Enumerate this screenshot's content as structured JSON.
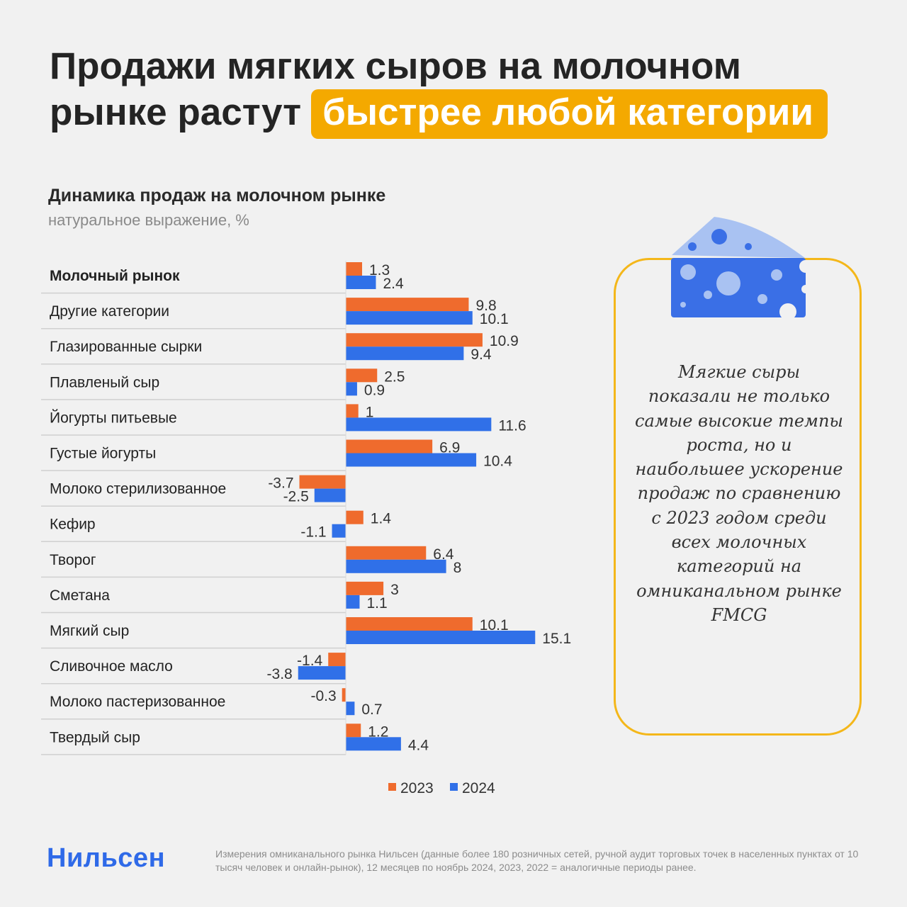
{
  "headline": {
    "line1": "Продажи мягких сыров на молочном",
    "line2_plain": "рынке растут",
    "line2_highlight": "быстрее любой категории"
  },
  "colors": {
    "accent_yellow": "#f4a900",
    "series_2023": "#ef6b2d",
    "series_2024": "#3070e8",
    "brand_blue": "#2f6ae8"
  },
  "callout": {
    "text": "Мягкие сыры показали не только самые высокие темпы роста, но и наибольшее ускорение продаж по сравнению с 2023 годом среди всех молочных категорий на омниканальном рынке FMCG",
    "icon": "cheese-icon"
  },
  "footer": {
    "brand": "Нильсен",
    "note": "Измерения омниканального рынка Нильсен (данные более 180 розничных сетей, ручной аудит торговых точек в населенных пунктах от 10 тысяч человек и онлайн-рынок), 12 месяцев по ноябрь 2024, 2023, 2022 = аналогичные периоды ранее."
  },
  "chart_data": {
    "type": "bar",
    "orientation": "horizontal",
    "title": "Динамика продаж на молочном рынке",
    "subtitle": "натуральное выражение, %",
    "categories": [
      "Молочный рынок",
      "Другие категории",
      "Глазированные сырки",
      "Плавленый сыр",
      "Йогурты питьевые",
      "Густые йогурты",
      "Молоко стерилизованное",
      "Кефир",
      "Творог",
      "Сметана",
      "Мягкий сыр",
      "Сливочное масло",
      "Молоко пастеризованное",
      "Твердый сыр"
    ],
    "series": [
      {
        "name": "2023",
        "color": "#ef6b2d",
        "values": [
          1.3,
          9.8,
          10.9,
          2.5,
          1,
          6.9,
          -3.7,
          1.4,
          6.4,
          3,
          10.1,
          -1.4,
          -0.3,
          1.2
        ],
        "labels": [
          "1.3",
          "9.8",
          "10.9",
          "2.5",
          "1",
          "6.9",
          "-3.7",
          "1.4",
          "6.4",
          "3",
          "10.1",
          "-1.4",
          "-0.3",
          "1.2"
        ]
      },
      {
        "name": "2024",
        "color": "#3070e8",
        "values": [
          2.4,
          10.1,
          9.4,
          0.9,
          11.6,
          10.4,
          -2.5,
          -1.1,
          8,
          1.1,
          15.1,
          -3.8,
          0.7,
          4.4
        ],
        "labels": [
          "2.4",
          "10.1",
          "9.4",
          "0.9",
          "11.6",
          "10.4",
          "-2.5",
          "-1.1",
          "8",
          "1.1",
          "15.1",
          "-3.8",
          "0.7",
          "4.4"
        ]
      }
    ],
    "legend_position": "bottom",
    "grid": false
  }
}
